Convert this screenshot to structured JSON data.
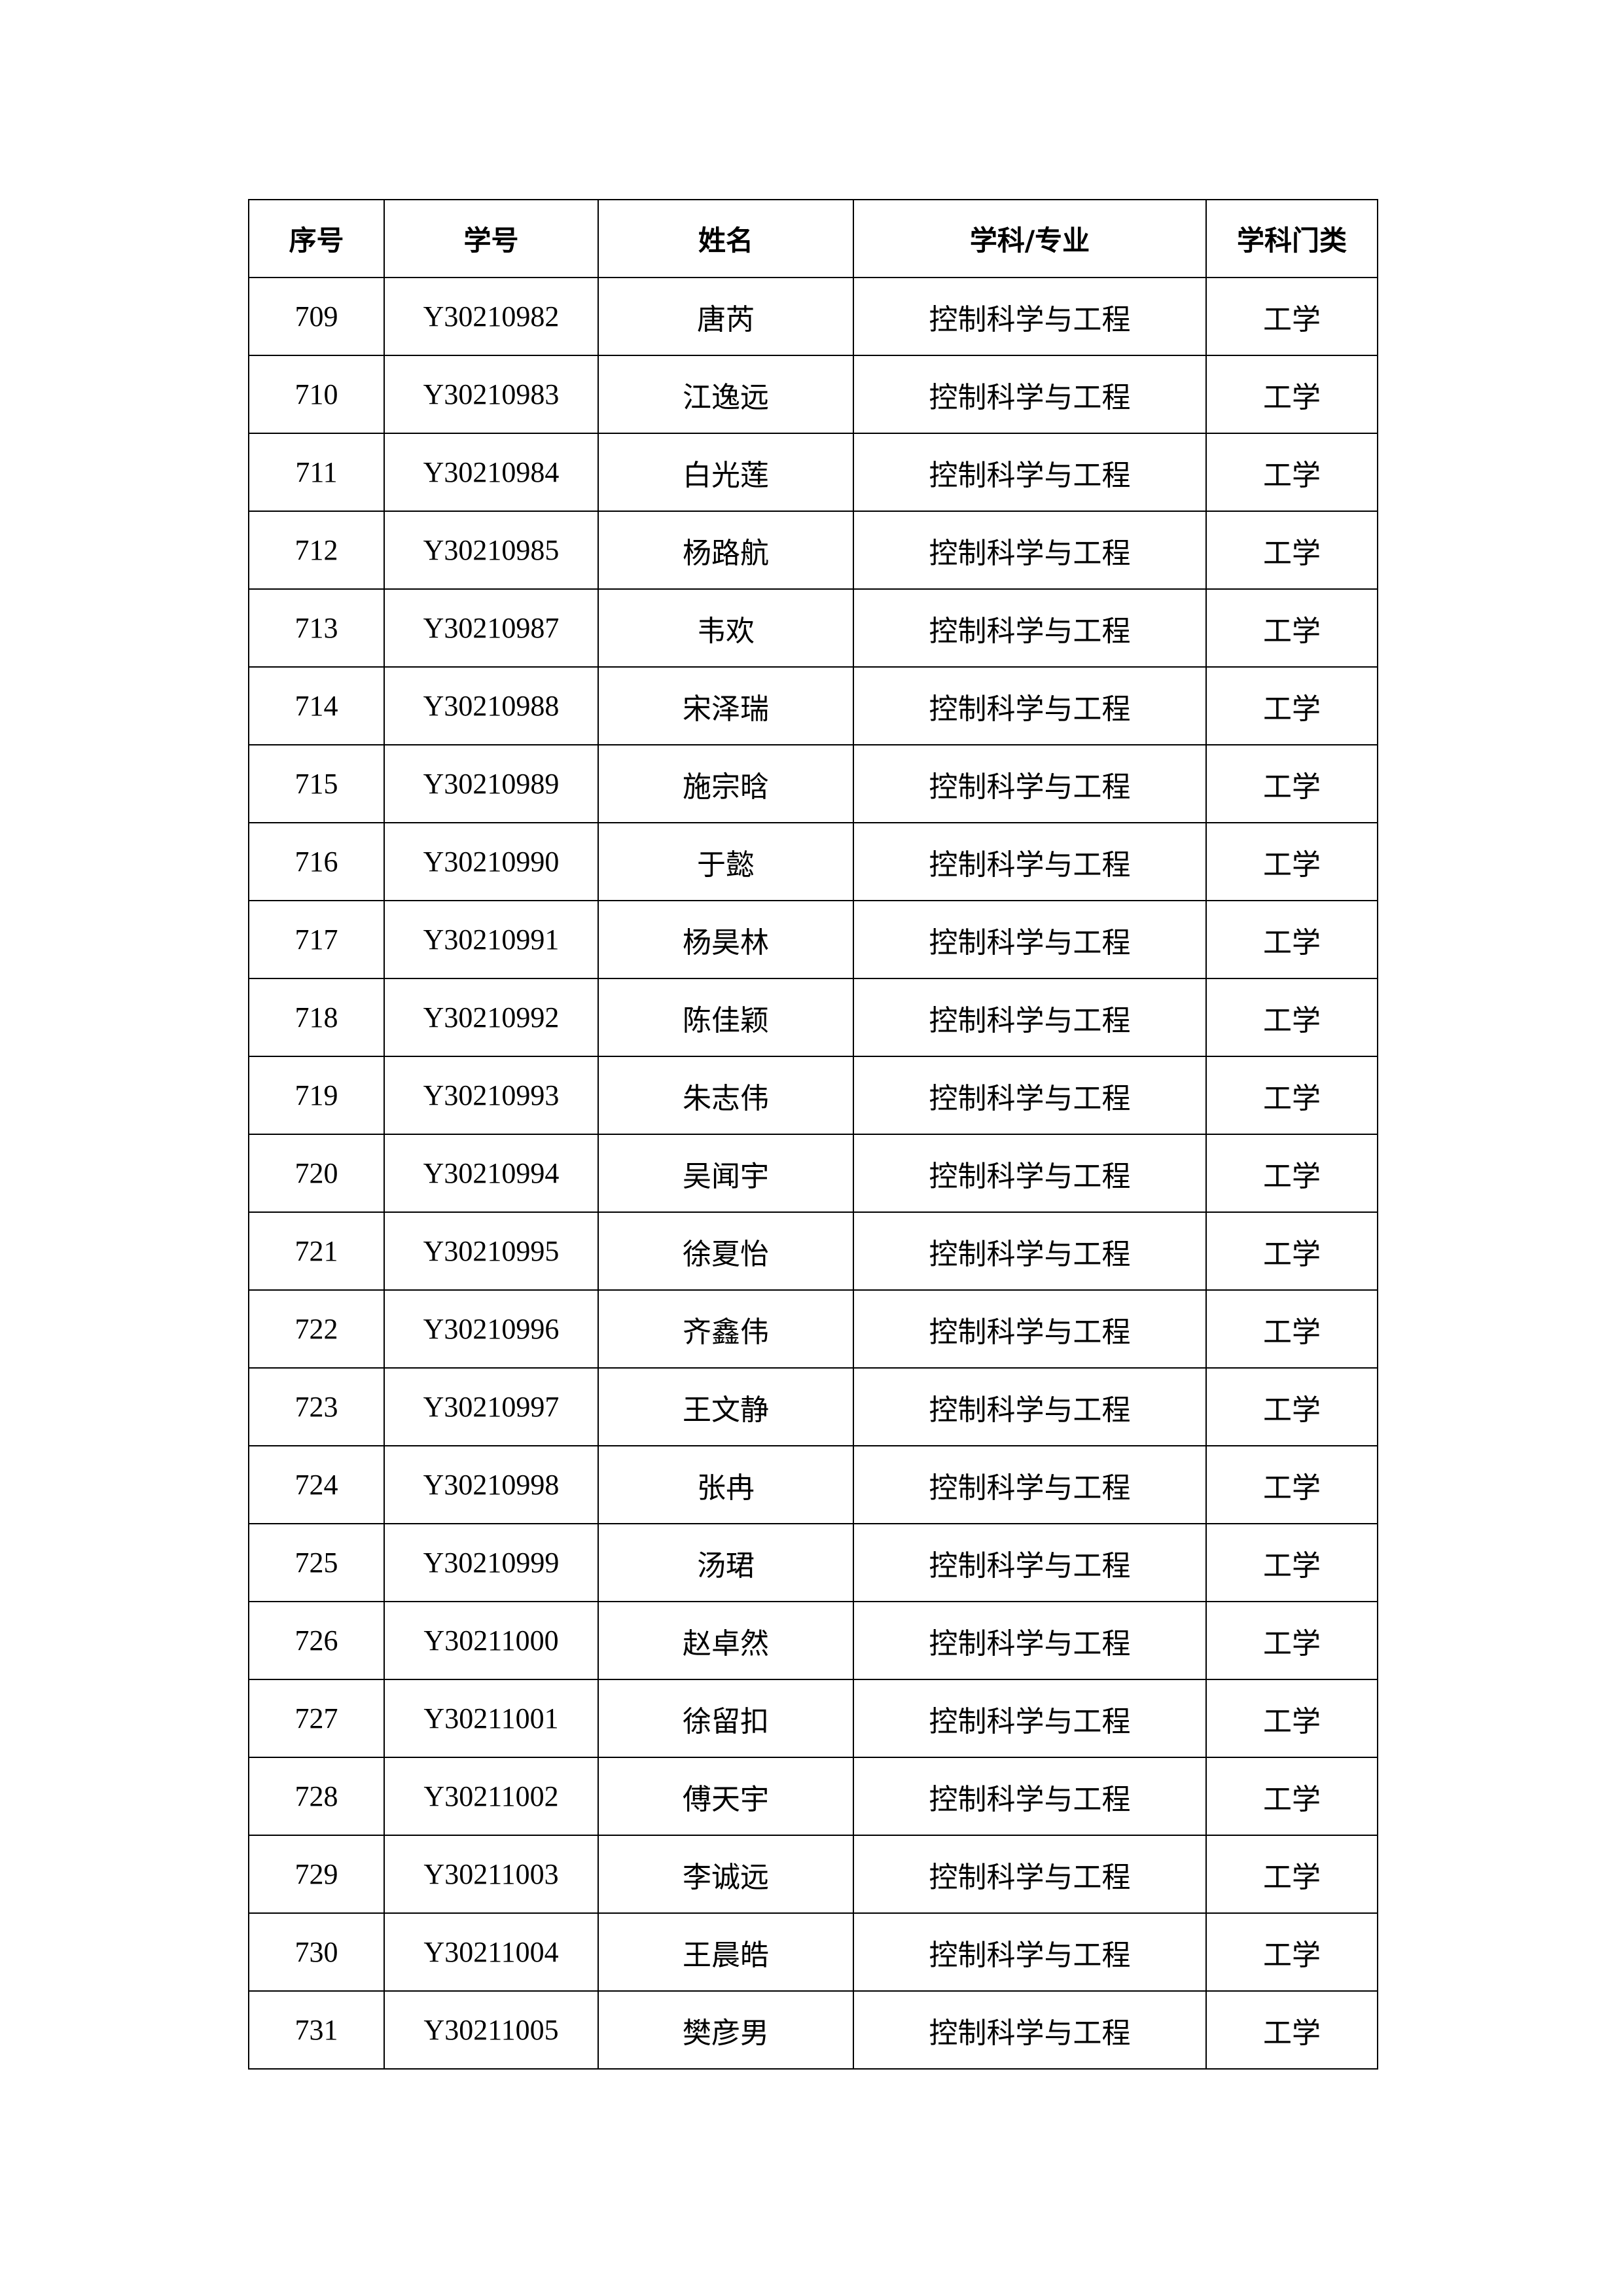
{
  "table": {
    "headers": [
      "序号",
      "学号",
      "姓名",
      "学科/专业",
      "学科门类"
    ],
    "rows": [
      [
        "709",
        "Y30210982",
        "唐芮",
        "控制科学与工程",
        "工学"
      ],
      [
        "710",
        "Y30210983",
        "江逸远",
        "控制科学与工程",
        "工学"
      ],
      [
        "711",
        "Y30210984",
        "白光莲",
        "控制科学与工程",
        "工学"
      ],
      [
        "712",
        "Y30210985",
        "杨路航",
        "控制科学与工程",
        "工学"
      ],
      [
        "713",
        "Y30210987",
        "韦欢",
        "控制科学与工程",
        "工学"
      ],
      [
        "714",
        "Y30210988",
        "宋泽瑞",
        "控制科学与工程",
        "工学"
      ],
      [
        "715",
        "Y30210989",
        "施宗晗",
        "控制科学与工程",
        "工学"
      ],
      [
        "716",
        "Y30210990",
        "于懿",
        "控制科学与工程",
        "工学"
      ],
      [
        "717",
        "Y30210991",
        "杨昊林",
        "控制科学与工程",
        "工学"
      ],
      [
        "718",
        "Y30210992",
        "陈佳颖",
        "控制科学与工程",
        "工学"
      ],
      [
        "719",
        "Y30210993",
        "朱志伟",
        "控制科学与工程",
        "工学"
      ],
      [
        "720",
        "Y30210994",
        "吴闻宇",
        "控制科学与工程",
        "工学"
      ],
      [
        "721",
        "Y30210995",
        "徐夏怡",
        "控制科学与工程",
        "工学"
      ],
      [
        "722",
        "Y30210996",
        "齐鑫伟",
        "控制科学与工程",
        "工学"
      ],
      [
        "723",
        "Y30210997",
        "王文静",
        "控制科学与工程",
        "工学"
      ],
      [
        "724",
        "Y30210998",
        "张冉",
        "控制科学与工程",
        "工学"
      ],
      [
        "725",
        "Y30210999",
        "汤珺",
        "控制科学与工程",
        "工学"
      ],
      [
        "726",
        "Y30211000",
        "赵卓然",
        "控制科学与工程",
        "工学"
      ],
      [
        "727",
        "Y30211001",
        "徐留扣",
        "控制科学与工程",
        "工学"
      ],
      [
        "728",
        "Y30211002",
        "傅天宇",
        "控制科学与工程",
        "工学"
      ],
      [
        "729",
        "Y30211003",
        "李诚远",
        "控制科学与工程",
        "工学"
      ],
      [
        "730",
        "Y30211004",
        "王晨皓",
        "控制科学与工程",
        "工学"
      ],
      [
        "731",
        "Y30211005",
        "樊彦男",
        "控制科学与工程",
        "工学"
      ]
    ]
  }
}
